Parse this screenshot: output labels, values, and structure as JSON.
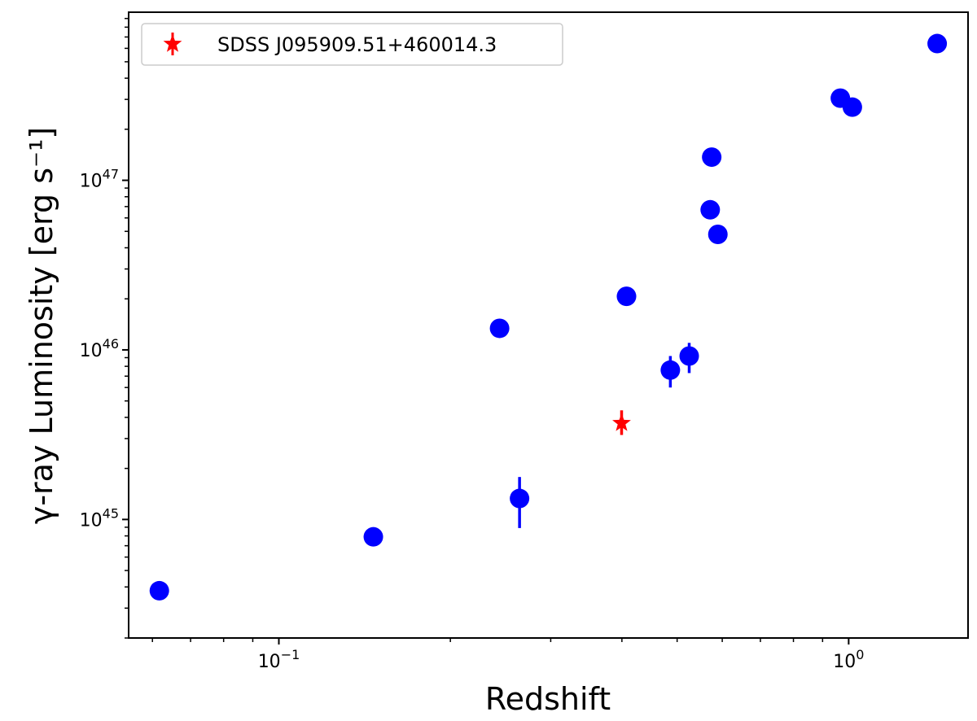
{
  "chart_data": {
    "type": "scatter",
    "xlabel": "Redshift",
    "ylabel": "γ-ray Luminosity [erg s⁻¹]",
    "xscale": "log",
    "yscale": "log",
    "xlim": [
      0.0545,
      1.62
    ],
    "ylim": [
      2e+44,
      9.8e+47
    ],
    "grid": false,
    "legend": {
      "placement": "top-left",
      "entries": [
        "SDSS J095909.51+460014.3"
      ]
    },
    "x_ticks": [
      {
        "value": 0.1,
        "base": "10",
        "exp": "−1"
      },
      {
        "value": 1.0,
        "base": "10",
        "exp": "0"
      }
    ],
    "y_ticks": [
      {
        "value": 1e+45,
        "base": "10",
        "exp": "45"
      },
      {
        "value": 1e+46,
        "base": "10",
        "exp": "46"
      },
      {
        "value": 1e+47,
        "base": "10",
        "exp": "47"
      }
    ],
    "series": [
      {
        "marker": "circle",
        "color": "#0000ff",
        "points": [
          {
            "x": 0.0617,
            "y": 3.8e+44
          },
          {
            "x": 0.1465,
            "y": 7.9e+44
          },
          {
            "x": 0.244,
            "y": 1.34e+46,
            "yerr": [
              1.2e+45,
              8e+44
            ]
          },
          {
            "x": 0.2645,
            "y": 1.33e+45,
            "yerr": [
              4.4e+44,
              4.5e+44
            ]
          },
          {
            "x": 0.4075,
            "y": 2.07e+46
          },
          {
            "x": 0.4865,
            "y": 7.6e+45,
            "yerr": [
              1.6e+45,
              1.6e+45
            ]
          },
          {
            "x": 0.525,
            "y": 9.2e+45,
            "yerr": [
              1.9e+45,
              1.8e+45
            ]
          },
          {
            "x": 0.5715,
            "y": 6.7e+46
          },
          {
            "x": 0.575,
            "y": 1.37e+47
          },
          {
            "x": 0.5895,
            "y": 4.8e+46
          },
          {
            "x": 0.967,
            "y": 3.05e+47
          },
          {
            "x": 1.015,
            "y": 2.7e+47
          },
          {
            "x": 1.43,
            "y": 6.4e+47
          }
        ]
      },
      {
        "name": "SDSS J095909.51+460014.3",
        "marker": "star",
        "color": "#ff0000",
        "points": [
          {
            "x": 0.3995,
            "y": 3.7e+45,
            "yerr": [
              5.5e+44,
              7e+44
            ]
          }
        ]
      }
    ]
  }
}
